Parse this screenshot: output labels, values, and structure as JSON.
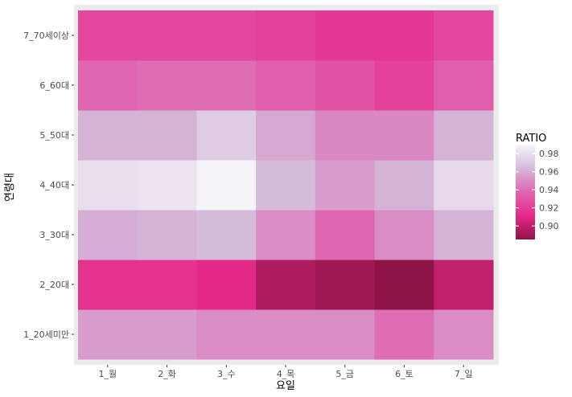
{
  "chart_data": {
    "type": "heatmap",
    "xlabel": "요일",
    "ylabel": "연령대",
    "x_categories": [
      "1_월",
      "2_화",
      "3_수",
      "4_목",
      "5_금",
      "6_토",
      "7_일"
    ],
    "y_categories": [
      "1_20세미만",
      "2_20대",
      "3_30대",
      "4_40대",
      "5_50대",
      "6_60대",
      "7_70세이상"
    ],
    "values": [
      [
        0.955,
        0.955,
        0.95,
        0.95,
        0.95,
        0.94,
        0.95
      ],
      [
        0.915,
        0.915,
        0.91,
        0.895,
        0.89,
        0.885,
        0.9
      ],
      [
        0.96,
        0.962,
        0.965,
        0.95,
        0.938,
        0.95,
        0.962
      ],
      [
        0.98,
        0.982,
        0.99,
        0.965,
        0.955,
        0.962,
        0.978
      ],
      [
        0.962,
        0.962,
        0.972,
        0.958,
        0.948,
        0.948,
        0.962
      ],
      [
        0.938,
        0.94,
        0.94,
        0.935,
        0.93,
        0.922,
        0.935
      ],
      [
        0.925,
        0.925,
        0.925,
        0.922,
        0.918,
        0.918,
        0.925
      ]
    ],
    "legend": {
      "title": "RATIO",
      "ticks": [
        0.98,
        0.96,
        0.94,
        0.92,
        0.9
      ],
      "tick_labels": [
        "0.98",
        "0.96",
        "0.94",
        "0.92",
        "0.90"
      ],
      "range": [
        0.885,
        0.99
      ]
    },
    "colors": {
      "scale": [
        "#8e1446",
        "#e7298a",
        "#df65b0",
        "#d4b9da",
        "#f7f4f9"
      ],
      "panel_background": "#ebebeb",
      "tick_color": "#333333"
    }
  }
}
